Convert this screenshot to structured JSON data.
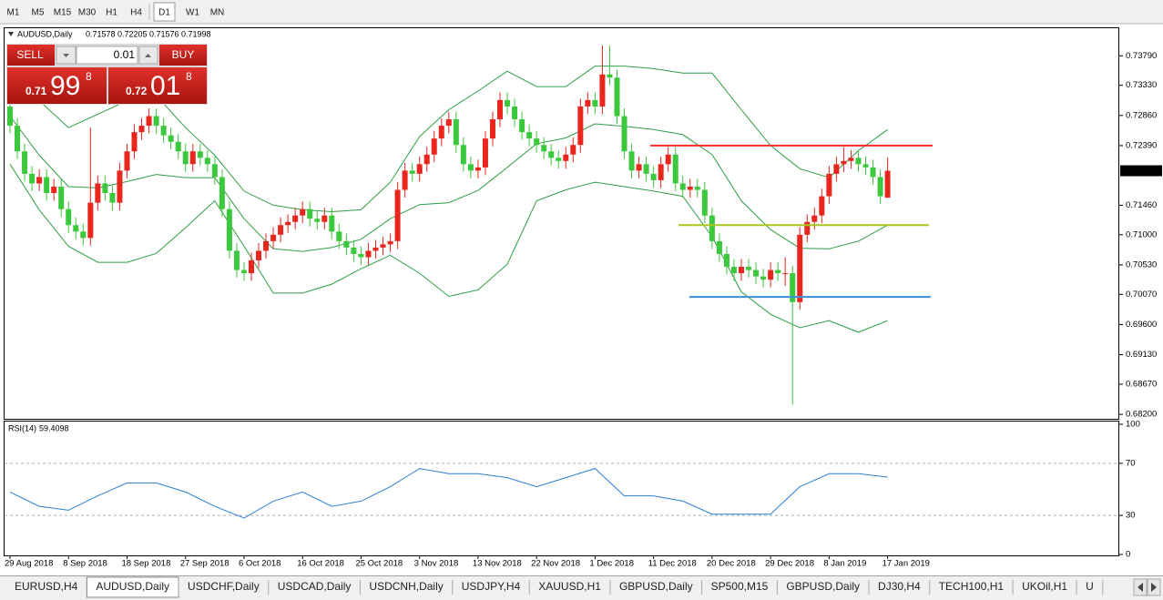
{
  "toolbar": {
    "timeframes": [
      "M1",
      "M5",
      "M15",
      "M30",
      "H1",
      "H4",
      "D1",
      "W1",
      "MN"
    ]
  },
  "trade_panel": {
    "sell": "SELL",
    "lot": "0.01",
    "buy": "BUY",
    "bid": {
      "big": "0.71",
      "pips": "99",
      "point": "8"
    },
    "ask": {
      "big": "0.72",
      "pips": "01",
      "point": "8"
    }
  },
  "tabs": [
    "EURUSD,H4",
    "AUDUSD,Daily",
    "USDCHF,Daily",
    "USDCAD,Daily",
    "USDCNH,Daily",
    "USDJPY,H4",
    "XAUUSD,H1",
    "GBPUSD,Daily",
    "SP500,M15",
    "GBPUSD,Daily",
    "DJ30,H4",
    "TECH100,H1",
    "UKOil,H1",
    "U"
  ],
  "chart_data": {
    "type": "candlestick",
    "title": "AUDUSD,Daily",
    "up_color": "#e8261e",
    "down_color": "#3cc83c",
    "categories": [
      "29 Aug 2018",
      null,
      null,
      null,
      null,
      null,
      null,
      null,
      "8 Sep 2018",
      null,
      null,
      null,
      null,
      null,
      null,
      null,
      "18 Sep 2018",
      null,
      null,
      null,
      null,
      null,
      null,
      null,
      "27 Sep 2018",
      null,
      null,
      null,
      null,
      null,
      null,
      null,
      "6 Oct 2018",
      null,
      null,
      null,
      null,
      null,
      null,
      null,
      "16 Oct 2018",
      null,
      null,
      null,
      null,
      null,
      null,
      null,
      "25 Oct 2018",
      null,
      null,
      null,
      null,
      null,
      null,
      null,
      "3 Nov 2018",
      null,
      null,
      null,
      null,
      null,
      null,
      null,
      "13 Nov 2018",
      null,
      null,
      null,
      null,
      null,
      null,
      null,
      "22 Nov 2018",
      null,
      null,
      null,
      null,
      null,
      null,
      null,
      "1 Dec 2018",
      null,
      null,
      null,
      null,
      null,
      null,
      null,
      "11 Dec 2018",
      null,
      null,
      null,
      null,
      null,
      null,
      null,
      "20 Dec 2018",
      null,
      null,
      null,
      null,
      null,
      null,
      null,
      "29 Dec 2018",
      null,
      null,
      null,
      null,
      null,
      null,
      null,
      "8 Jan 2019",
      null,
      null,
      null,
      null,
      null,
      null,
      null,
      "17 Jan 2019"
    ],
    "ohlc": [
      [
        0.73,
        0.7312,
        0.7258,
        0.727
      ],
      [
        0.727,
        0.7282,
        0.7218,
        0.723
      ],
      [
        0.723,
        0.7242,
        0.7183,
        0.7195
      ],
      [
        0.7195,
        0.7207,
        0.7168,
        0.718
      ],
      [
        0.718,
        0.7202,
        0.7168,
        0.719
      ],
      [
        0.719,
        0.7202,
        0.7153,
        0.7165
      ],
      [
        0.7165,
        0.7187,
        0.7153,
        0.7175
      ],
      [
        0.7175,
        0.7187,
        0.7128,
        0.714
      ],
      [
        0.714,
        0.7152,
        0.7103,
        0.7115
      ],
      [
        0.7115,
        0.7127,
        0.7093,
        0.7105
      ],
      [
        0.7105,
        0.7117,
        0.7083,
        0.7095
      ],
      [
        0.7095,
        0.7267,
        0.7083,
        0.715
      ],
      [
        0.715,
        0.7192,
        0.7138,
        0.718
      ],
      [
        0.718,
        0.7192,
        0.7153,
        0.7165
      ],
      [
        0.7165,
        0.7177,
        0.7138,
        0.715
      ],
      [
        0.715,
        0.7212,
        0.7138,
        0.72
      ],
      [
        0.72,
        0.7242,
        0.7188,
        0.723
      ],
      [
        0.723,
        0.7272,
        0.7218,
        0.726
      ],
      [
        0.726,
        0.7282,
        0.7248,
        0.727
      ],
      [
        0.727,
        0.7297,
        0.7258,
        0.7285
      ],
      [
        0.7285,
        0.7297,
        0.7258,
        0.727
      ],
      [
        0.727,
        0.7282,
        0.7243,
        0.7255
      ],
      [
        0.7255,
        0.7267,
        0.7233,
        0.7245
      ],
      [
        0.7245,
        0.7257,
        0.7218,
        0.723
      ],
      [
        0.723,
        0.7242,
        0.7198,
        0.721
      ],
      [
        0.721,
        0.7242,
        0.7198,
        0.723
      ],
      [
        0.723,
        0.7242,
        0.7208,
        0.722
      ],
      [
        0.722,
        0.7232,
        0.7198,
        0.721
      ],
      [
        0.721,
        0.7222,
        0.7178,
        0.719
      ],
      [
        0.719,
        0.7202,
        0.7128,
        0.714
      ],
      [
        0.714,
        0.7152,
        0.7063,
        0.7075
      ],
      [
        0.7075,
        0.7087,
        0.7033,
        0.7045
      ],
      [
        0.7045,
        0.7057,
        0.7028,
        0.704
      ],
      [
        0.704,
        0.7072,
        0.7028,
        0.706
      ],
      [
        0.706,
        0.7087,
        0.7048,
        0.7075
      ],
      [
        0.7075,
        0.7102,
        0.7063,
        0.709
      ],
      [
        0.709,
        0.7112,
        0.7078,
        0.71
      ],
      [
        0.71,
        0.7127,
        0.7088,
        0.7115
      ],
      [
        0.7115,
        0.7132,
        0.7103,
        0.712
      ],
      [
        0.712,
        0.7142,
        0.7108,
        0.713
      ],
      [
        0.713,
        0.7152,
        0.7118,
        0.714
      ],
      [
        0.714,
        0.7152,
        0.7113,
        0.7125
      ],
      [
        0.7125,
        0.7137,
        0.7108,
        0.712
      ],
      [
        0.712,
        0.7142,
        0.7108,
        0.713
      ],
      [
        0.713,
        0.7142,
        0.7093,
        0.7105
      ],
      [
        0.7105,
        0.7117,
        0.7078,
        0.709
      ],
      [
        0.709,
        0.7102,
        0.7068,
        0.708
      ],
      [
        0.708,
        0.7092,
        0.7058,
        0.707
      ],
      [
        0.707,
        0.7082,
        0.7053,
        0.7065
      ],
      [
        0.7065,
        0.7087,
        0.7053,
        0.7075
      ],
      [
        0.7075,
        0.7092,
        0.7063,
        0.708
      ],
      [
        0.708,
        0.7097,
        0.7068,
        0.7085
      ],
      [
        0.7085,
        0.7102,
        0.7073,
        0.709
      ],
      [
        0.709,
        0.7182,
        0.7078,
        0.717
      ],
      [
        0.717,
        0.7212,
        0.7158,
        0.72
      ],
      [
        0.72,
        0.7212,
        0.7183,
        0.7195
      ],
      [
        0.7195,
        0.7222,
        0.7183,
        0.721
      ],
      [
        0.721,
        0.7237,
        0.7198,
        0.7225
      ],
      [
        0.7225,
        0.7262,
        0.7213,
        0.725
      ],
      [
        0.725,
        0.7282,
        0.7238,
        0.727
      ],
      [
        0.727,
        0.7292,
        0.7258,
        0.728
      ],
      [
        0.728,
        0.7292,
        0.7228,
        0.724
      ],
      [
        0.724,
        0.7252,
        0.7198,
        0.721
      ],
      [
        0.721,
        0.7222,
        0.7188,
        0.72
      ],
      [
        0.72,
        0.7217,
        0.7188,
        0.7205
      ],
      [
        0.7205,
        0.7262,
        0.7193,
        0.725
      ],
      [
        0.725,
        0.7292,
        0.7238,
        0.728
      ],
      [
        0.728,
        0.7322,
        0.7268,
        0.731
      ],
      [
        0.731,
        0.7322,
        0.7288,
        0.73
      ],
      [
        0.73,
        0.7312,
        0.7268,
        0.728
      ],
      [
        0.728,
        0.7292,
        0.7248,
        0.726
      ],
      [
        0.726,
        0.7272,
        0.7238,
        0.725
      ],
      [
        0.725,
        0.7262,
        0.7228,
        0.724
      ],
      [
        0.724,
        0.7252,
        0.7218,
        0.723
      ],
      [
        0.723,
        0.7242,
        0.7208,
        0.722
      ],
      [
        0.722,
        0.7232,
        0.7203,
        0.7215
      ],
      [
        0.7215,
        0.7237,
        0.7203,
        0.7225
      ],
      [
        0.7225,
        0.7252,
        0.7213,
        0.724
      ],
      [
        0.724,
        0.7312,
        0.7228,
        0.73
      ],
      [
        0.73,
        0.7322,
        0.7288,
        0.731
      ],
      [
        0.731,
        0.7322,
        0.7288,
        0.73
      ],
      [
        0.73,
        0.7395,
        0.7288,
        0.735
      ],
      [
        0.735,
        0.7395,
        0.7333,
        0.7345
      ],
      [
        0.7345,
        0.7357,
        0.7273,
        0.7285
      ],
      [
        0.7285,
        0.7297,
        0.7218,
        0.723
      ],
      [
        0.723,
        0.7242,
        0.7188,
        0.72
      ],
      [
        0.72,
        0.7222,
        0.7188,
        0.721
      ],
      [
        0.721,
        0.7222,
        0.7183,
        0.7195
      ],
      [
        0.7195,
        0.7207,
        0.7173,
        0.7185
      ],
      [
        0.7185,
        0.7222,
        0.7173,
        0.721
      ],
      [
        0.721,
        0.7237,
        0.7198,
        0.7225
      ],
      [
        0.7225,
        0.7237,
        0.7168,
        0.718
      ],
      [
        0.718,
        0.7192,
        0.7158,
        0.717
      ],
      [
        0.717,
        0.7187,
        0.7158,
        0.7175
      ],
      [
        0.7175,
        0.7187,
        0.7158,
        0.717
      ],
      [
        0.717,
        0.7182,
        0.7118,
        0.713
      ],
      [
        0.713,
        0.7142,
        0.7078,
        0.709
      ],
      [
        0.709,
        0.7102,
        0.7058,
        0.707
      ],
      [
        0.707,
        0.7082,
        0.7038,
        0.705
      ],
      [
        0.705,
        0.7062,
        0.7028,
        0.704
      ],
      [
        0.704,
        0.7062,
        0.7028,
        0.705
      ],
      [
        0.705,
        0.7062,
        0.7033,
        0.7045
      ],
      [
        0.7045,
        0.7057,
        0.7023,
        0.7035
      ],
      [
        0.7035,
        0.7047,
        0.7018,
        0.703
      ],
      [
        0.703,
        0.7057,
        0.7018,
        0.7045
      ],
      [
        0.7045,
        0.7057,
        0.7028,
        0.704
      ],
      [
        0.704,
        0.7065,
        0.702,
        0.704
      ],
      [
        0.704,
        0.7052,
        0.6835,
        0.6995
      ],
      [
        0.6995,
        0.7112,
        0.6983,
        0.71
      ],
      [
        0.71,
        0.7132,
        0.7088,
        0.712
      ],
      [
        0.712,
        0.7142,
        0.7108,
        0.713
      ],
      [
        0.713,
        0.7172,
        0.7118,
        0.716
      ],
      [
        0.716,
        0.7207,
        0.7148,
        0.7195
      ],
      [
        0.7195,
        0.7222,
        0.7183,
        0.721
      ],
      [
        0.721,
        0.7237,
        0.7198,
        0.7215
      ],
      [
        0.7215,
        0.7232,
        0.7203,
        0.722
      ],
      [
        0.722,
        0.7232,
        0.7198,
        0.721
      ],
      [
        0.721,
        0.7222,
        0.7193,
        0.7205
      ],
      [
        0.7205,
        0.7217,
        0.7178,
        0.719
      ],
      [
        0.719,
        0.7202,
        0.7148,
        0.716
      ],
      [
        0.71578,
        0.72205,
        0.71576,
        0.71998
      ]
    ],
    "ylim": [
      0.6813,
      0.7422
    ],
    "yticks": [
      {
        "value": 0.7379,
        "label": "0.73790"
      },
      {
        "value": 0.7333,
        "label": "0.73330"
      },
      {
        "value": 0.7286,
        "label": "0.72860"
      },
      {
        "value": 0.7239,
        "label": "0.72390"
      },
      {
        "value": 0.7146,
        "label": "0.71460"
      },
      {
        "value": 0.71,
        "label": "0.71000"
      },
      {
        "value": 0.7053,
        "label": "0.70530"
      },
      {
        "value": 0.7007,
        "label": "0.70070"
      },
      {
        "value": 0.696,
        "label": "0.69600"
      },
      {
        "value": 0.6913,
        "label": "0.69130"
      },
      {
        "value": 0.6867,
        "label": "0.68670"
      },
      {
        "value": 0.682,
        "label": "0.68200"
      }
    ],
    "levels": [
      {
        "value": 0.7239,
        "color": "#ff2a2a"
      },
      {
        "value": 0.7115,
        "color": "#a8c81e"
      },
      {
        "value": 0.7003,
        "color": "#3a8fd8"
      }
    ],
    "indicator_x": [
      0,
      4,
      8,
      12,
      16,
      20,
      24,
      28,
      32,
      36,
      40,
      44,
      48,
      52,
      56,
      60,
      64,
      68,
      72,
      76,
      80,
      84,
      88,
      92,
      96,
      100,
      104,
      108,
      112,
      116,
      120
    ],
    "bollinger": {
      "color": "#2e9e44",
      "upper": [
        0.7359,
        0.7309,
        0.7267,
        0.7288,
        0.7309,
        0.7317,
        0.7267,
        0.7224,
        0.7168,
        0.7146,
        0.7139,
        0.7136,
        0.7139,
        0.7182,
        0.7253,
        0.7295,
        0.7324,
        0.7355,
        0.7331,
        0.7331,
        0.7363,
        0.7363,
        0.7359,
        0.7352,
        0.7352,
        0.7295,
        0.7239,
        0.7203,
        0.7189,
        0.7231,
        0.7264
      ],
      "middle": [
        0.7285,
        0.7224,
        0.7175,
        0.7173,
        0.7183,
        0.7194,
        0.7189,
        0.7189,
        0.7125,
        0.7078,
        0.7074,
        0.708,
        0.7093,
        0.7125,
        0.7147,
        0.715,
        0.7169,
        0.7205,
        0.7242,
        0.7251,
        0.7273,
        0.7269,
        0.7264,
        0.7256,
        0.7225,
        0.7153,
        0.7108,
        0.7079,
        0.7078,
        0.709,
        0.7115
      ],
      "lower": [
        0.721,
        0.7139,
        0.7082,
        0.7057,
        0.7057,
        0.7071,
        0.7111,
        0.7153,
        0.7082,
        0.7009,
        0.7009,
        0.7023,
        0.7047,
        0.7068,
        0.704,
        0.7004,
        0.7014,
        0.7054,
        0.7153,
        0.717,
        0.7182,
        0.7175,
        0.7168,
        0.716,
        0.7097,
        0.7011,
        0.6976,
        0.6955,
        0.6966,
        0.6948,
        0.6966
      ]
    },
    "rsi": {
      "label": "RSI(14)",
      "color": "#2a7fd4",
      "ylim": [
        0,
        100
      ],
      "yticks": [
        0,
        30,
        70,
        100
      ],
      "values": [
        48,
        37,
        34,
        45,
        55,
        55,
        48,
        37,
        28,
        41,
        48,
        37,
        41,
        52,
        66,
        62,
        62,
        59,
        52,
        59,
        66,
        45,
        45,
        41,
        31,
        31,
        31,
        52,
        62,
        62,
        59.4098
      ]
    }
  }
}
